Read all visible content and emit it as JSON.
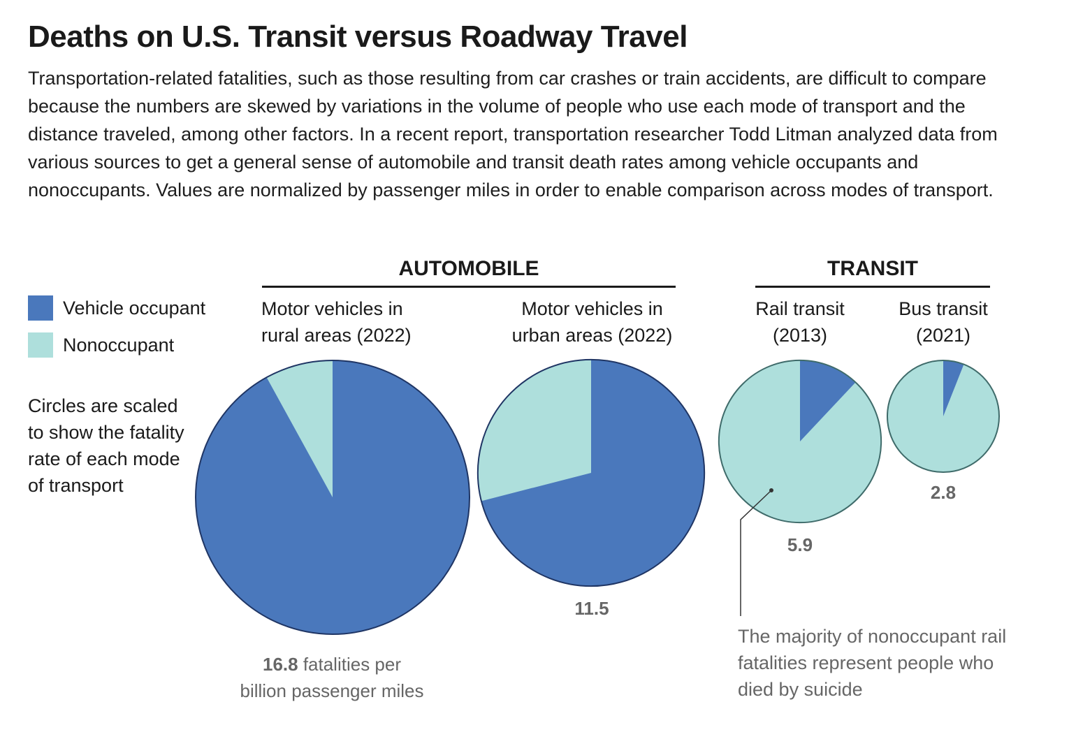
{
  "title": "Deaths on U.S. Transit versus Roadway Travel",
  "intro": "Transportation-related fatalities, such as those resulting from car crashes or train accidents, are difficult to compare because the numbers are skewed by variations in the volume of people who use each mode of transport and the distance traveled, among other factors. In a recent report, transportation researcher Todd Litman analyzed data from various sources to get a general sense of automobile and transit death rates among vehicle occupants and nonoccupants. Values are normalized by passenger miles in order to enable comparison across modes of transport.",
  "groups": {
    "automobile": "AUTOMOBILE",
    "transit": "TRANSIT"
  },
  "legend": {
    "occupant": "Vehicle occupant",
    "nonoccupant": "Nonoccupant"
  },
  "note": "Circles are scaled to show the fatality rate of each mode of transport",
  "labels": {
    "rural": [
      "Motor vehicles in",
      "rural areas (2022)"
    ],
    "urban": [
      "Motor vehicles in",
      "urban areas (2022)"
    ],
    "rail": [
      "Rail transit",
      "(2013)"
    ],
    "bus": [
      "Bus transit",
      "(2021)"
    ]
  },
  "values_text": {
    "rural_value": "16.8",
    "rural_unit": " fatalities per",
    "rural_unit2": "billion passenger miles",
    "urban": "11.5",
    "rail": "5.9",
    "bus": "2.8"
  },
  "callout": "The majority of nonoccupant rail fatalities represent people who died by suicide",
  "colors": {
    "occupant": "#4a78bc",
    "nonoccupant": "#aedfdc",
    "outline_occupant": "#1f3564",
    "outline_nonoccupant": "#3f6b6a"
  },
  "chart_data": {
    "type": "pie",
    "title": "Deaths on U.S. Transit versus Roadway Travel",
    "unit": "fatalities per billion passenger miles",
    "series": [
      {
        "name": "Motor vehicles in rural areas (2022)",
        "group": "AUTOMOBILE",
        "total": 16.8,
        "occupant_share": 0.92,
        "nonoccupant_share": 0.08
      },
      {
        "name": "Motor vehicles in urban areas (2022)",
        "group": "AUTOMOBILE",
        "total": 11.5,
        "occupant_share": 0.71,
        "nonoccupant_share": 0.29
      },
      {
        "name": "Rail transit (2013)",
        "group": "TRANSIT",
        "total": 5.9,
        "occupant_share": 0.12,
        "nonoccupant_share": 0.88
      },
      {
        "name": "Bus transit (2021)",
        "group": "TRANSIT",
        "total": 2.8,
        "occupant_share": 0.06,
        "nonoccupant_share": 0.94
      }
    ],
    "legend": [
      "Vehicle occupant",
      "Nonoccupant"
    ]
  }
}
